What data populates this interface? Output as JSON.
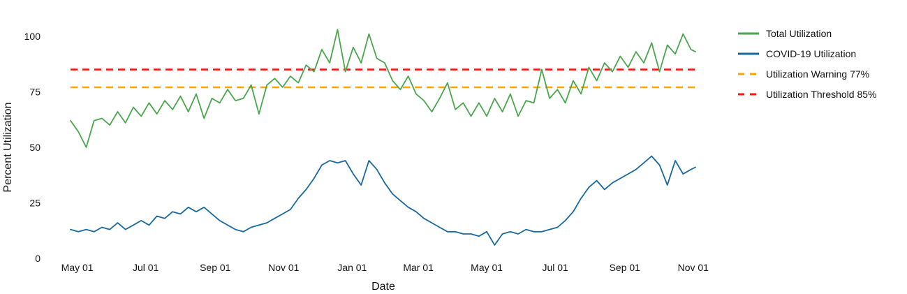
{
  "chart_data": {
    "type": "line",
    "title": "",
    "xlabel": "Date",
    "ylabel": "Percent Utilization",
    "grid": false,
    "legend_position": "right-outside",
    "x_unit": "day offset from first plotted point (series spans ~18 months, late Apr through early Nov of following year)",
    "xlim": [
      0,
      557
    ],
    "ylim": [
      0,
      110
    ],
    "x_ticks": [
      6,
      67,
      129,
      190,
      251,
      310,
      371,
      432,
      494,
      555
    ],
    "x_ticklabels": [
      "May 01",
      "Jul 01",
      "Sep 01",
      "Nov 01",
      "Jan 01",
      "Mar 01",
      "May 01",
      "Jul 01",
      "Sep 01",
      "Nov 01"
    ],
    "y_ticks": [
      0,
      25,
      50,
      75,
      100
    ],
    "x": [
      0,
      7,
      14,
      21,
      28,
      35,
      42,
      49,
      56,
      63,
      70,
      77,
      84,
      91,
      98,
      105,
      112,
      119,
      126,
      133,
      140,
      147,
      154,
      161,
      168,
      175,
      182,
      189,
      196,
      203,
      210,
      217,
      224,
      231,
      238,
      245,
      252,
      259,
      266,
      273,
      280,
      287,
      294,
      301,
      308,
      315,
      322,
      329,
      336,
      343,
      350,
      357,
      364,
      371,
      378,
      385,
      392,
      399,
      406,
      413,
      420,
      427,
      434,
      441,
      448,
      455,
      462,
      469,
      476,
      483,
      490,
      497,
      504,
      511,
      518,
      525,
      532,
      539,
      546,
      553,
      557
    ],
    "series": [
      {
        "name": "Total Utilization",
        "color": "#4aa64c",
        "line_style": "solid",
        "values": [
          62,
          57,
          50,
          62,
          63,
          60,
          66,
          61,
          68,
          64,
          70,
          65,
          71,
          67,
          73,
          66,
          74,
          63,
          72,
          70,
          76,
          71,
          72,
          78,
          65,
          78,
          81,
          77,
          82,
          79,
          87,
          84,
          94,
          88,
          103,
          84,
          95,
          88,
          101,
          90,
          88,
          80,
          76,
          82,
          74,
          71,
          66,
          72,
          79,
          67,
          70,
          64,
          70,
          64,
          72,
          66,
          74,
          64,
          71,
          70,
          85,
          72,
          76,
          70,
          80,
          74,
          86,
          80,
          88,
          84,
          91,
          86,
          93,
          88,
          97,
          84,
          96,
          92,
          101,
          94,
          93
        ]
      },
      {
        "name": "COVID-19 Utilization",
        "color": "#17699f",
        "line_style": "solid",
        "values": [
          13,
          12,
          13,
          12,
          14,
          13,
          16,
          13,
          15,
          17,
          15,
          19,
          18,
          21,
          20,
          23,
          21,
          23,
          20,
          17,
          15,
          13,
          12,
          14,
          15,
          16,
          18,
          20,
          22,
          27,
          31,
          36,
          42,
          44,
          43,
          44,
          38,
          33,
          44,
          40,
          34,
          29,
          26,
          23,
          21,
          18,
          16,
          14,
          12,
          12,
          11,
          11,
          10,
          12,
          6,
          11,
          12,
          11,
          13,
          12,
          12,
          13,
          14,
          17,
          21,
          27,
          32,
          35,
          31,
          34,
          36,
          38,
          40,
          43,
          46,
          42,
          33,
          44,
          38,
          40,
          41
        ]
      }
    ],
    "reference_lines": [
      {
        "name": "Utilization Warning 77%",
        "value": 77,
        "color": "#ffa500",
        "line_style": "dashed"
      },
      {
        "name": "Utilization Threshold 85%",
        "value": 85,
        "color": "#f8150c",
        "line_style": "dashed"
      }
    ],
    "legend": [
      {
        "label": "Total Utilization",
        "color": "#4aa64c",
        "dash": false
      },
      {
        "label": "COVID-19 Utilization",
        "color": "#17699f",
        "dash": false
      },
      {
        "label": "Utilization Warning 77%",
        "color": "#ffa500",
        "dash": true
      },
      {
        "label": "Utilization Threshold 85%",
        "color": "#f8150c",
        "dash": true
      }
    ]
  }
}
